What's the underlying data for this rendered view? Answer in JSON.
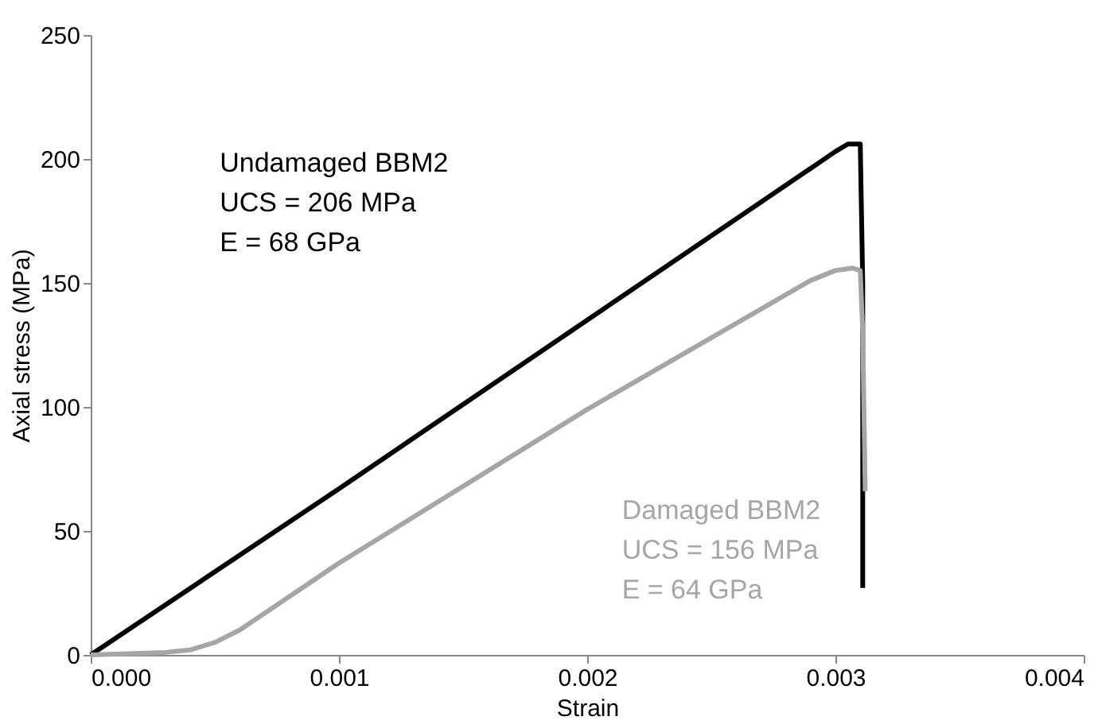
{
  "chart_data": {
    "type": "line",
    "xlabel": "Strain",
    "ylabel": "Axial stress (MPa)",
    "xlim": [
      0,
      0.004
    ],
    "xticks": [
      {
        "value": 0,
        "label": "0.000"
      },
      {
        "value": 0.001,
        "label": "0.001"
      },
      {
        "value": 0.002,
        "label": "0.002"
      },
      {
        "value": 0.003,
        "label": "0.003"
      },
      {
        "value": 0.004,
        "label": "0.004"
      }
    ],
    "ylim": [
      0,
      250
    ],
    "yticks": [
      0,
      50,
      100,
      150,
      200,
      250
    ],
    "grid": false,
    "marker": "none",
    "line_style": "solid",
    "series": [
      {
        "name": "Undamaged BBM2",
        "color": "#000000",
        "x": [
          0,
          0.001,
          0.002,
          0.003,
          0.00305,
          0.0031,
          0.00311,
          0.00311
        ],
        "values": [
          0,
          67,
          135,
          203,
          206,
          206,
          150,
          27
        ]
      },
      {
        "name": "Damaged BBM2",
        "color": "#a6a6a6",
        "x": [
          0,
          0.0003,
          0.0004,
          0.0005,
          0.0006,
          0.001,
          0.002,
          0.0029,
          0.003,
          0.00307,
          0.0031,
          0.00311,
          0.00312
        ],
        "values": [
          0,
          1,
          2,
          5,
          10,
          37,
          99,
          151,
          155,
          156,
          155,
          130,
          66
        ]
      }
    ],
    "annotations": [
      "UCS = 206 MPa",
      "E = 68 GPa",
      "UCS = 156 MPa",
      "E = 64 GPa"
    ]
  }
}
